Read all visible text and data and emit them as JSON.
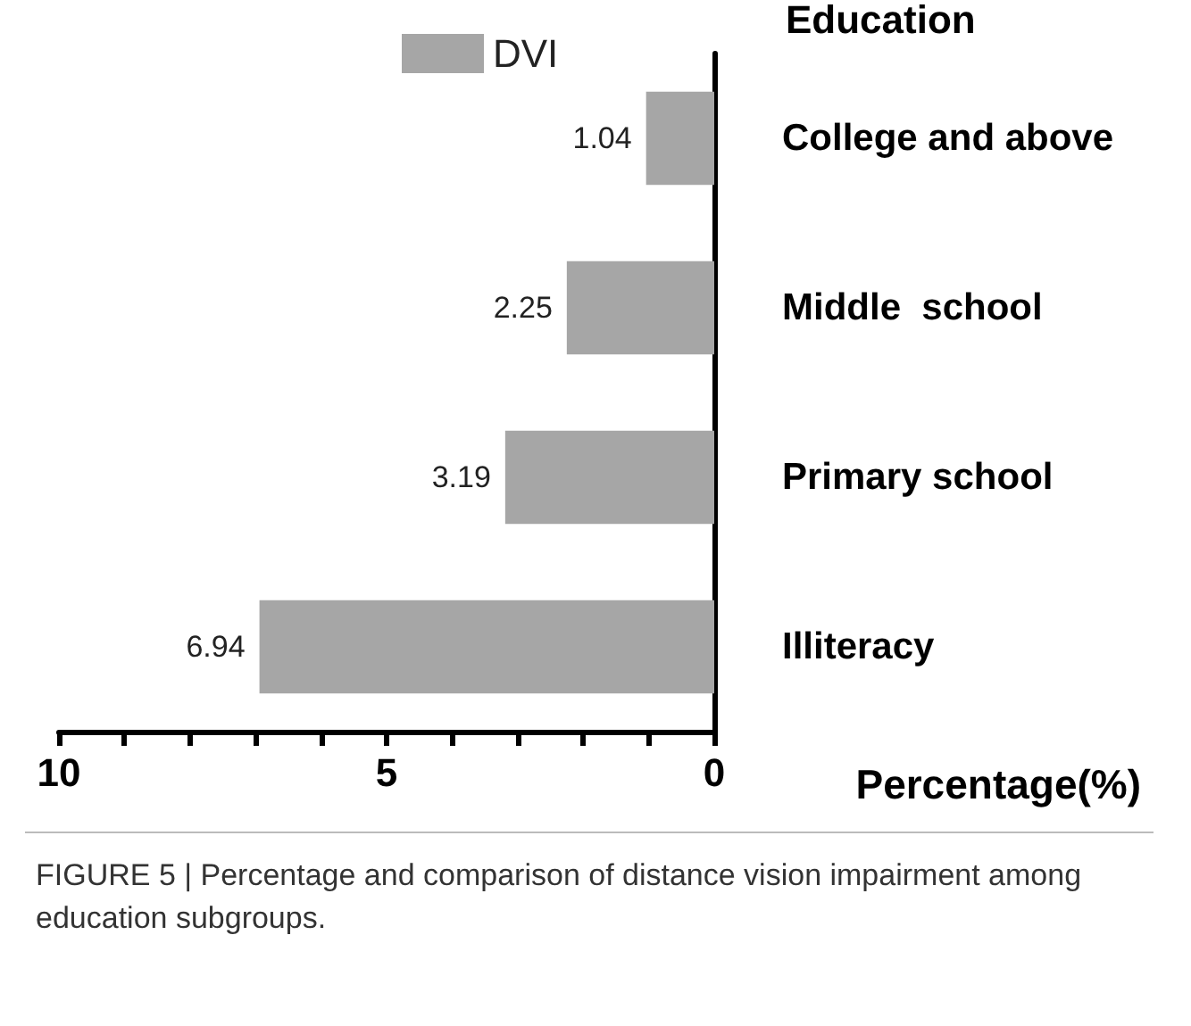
{
  "chart_data": {
    "type": "bar",
    "orientation": "horizontal",
    "ylabel": "Education",
    "xlabel": "Percentage(%)",
    "categories": [
      "College and above",
      "Middle  school",
      "Primary school",
      "Illiteracy"
    ],
    "series": [
      {
        "name": "DVI",
        "color": "#a6a6a6",
        "values": [
          1.04,
          2.25,
          3.19,
          6.94
        ]
      }
    ],
    "data_labels": true,
    "legend": "top",
    "grid": false,
    "xlim": [
      10,
      0
    ],
    "xticks": [
      10,
      {
        "value": 9,
        "label": null
      },
      {
        "value": 8,
        "label": null
      },
      {
        "value": 7,
        "label": null
      },
      {
        "value": 6,
        "label": null
      },
      5,
      {
        "value": 4,
        "label": null
      },
      {
        "value": 3,
        "label": null
      },
      {
        "value": 2,
        "label": null
      },
      {
        "value": 1,
        "label": null
      },
      0
    ],
    "annotations": [
      "FIGURE 5 | Percentage and comparison of distance vision impairment among education subgroups."
    ]
  }
}
